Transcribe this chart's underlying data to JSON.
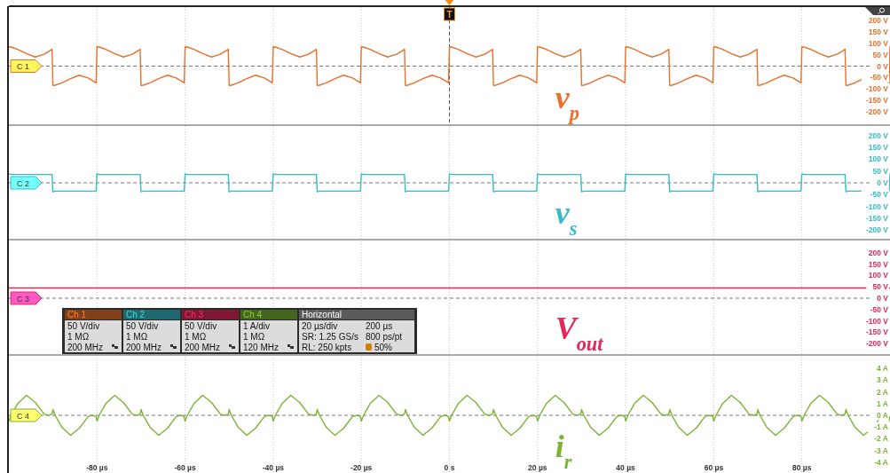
{
  "chart_data": [
    {
      "type": "line",
      "xlim": [
        -100,
        100
      ],
      "ylim": [
        -260,
        260
      ],
      "tick_labels": "y",
      "grid": "x",
      "line_style": "solid",
      "xticks": [
        -80,
        -60,
        -40,
        -20,
        0,
        20,
        40,
        60,
        80
      ],
      "yticks": [
        {
          "value": 200,
          "label": "200 V"
        },
        {
          "value": 150,
          "label": "150 V"
        },
        {
          "value": 100,
          "label": "100 V"
        },
        {
          "value": 50,
          "label": "50 V"
        },
        {
          "value": 0,
          "label": "0 V"
        },
        {
          "value": -50,
          "label": "-50 V"
        },
        {
          "value": -100,
          "label": "-100 V"
        },
        {
          "value": -150,
          "label": "-150 V"
        },
        {
          "value": -200,
          "label": "-200 V"
        }
      ],
      "ref_lines": [
        {
          "axis": "y",
          "value": 0,
          "line_style": "dashed"
        },
        {
          "axis": "x",
          "value": 0,
          "label": "T",
          "line_style": "dashed"
        }
      ],
      "annotations": [
        "C 1"
      ],
      "x": [
        -100,
        -99.5,
        -98,
        -96,
        -94,
        -92,
        -91,
        -90.2,
        -90,
        -89.5,
        -88,
        -86,
        -84,
        -82,
        -81,
        -80.2,
        -80,
        -79.5,
        -78,
        -76,
        -74,
        -72,
        -71,
        -70.2,
        -70,
        -69.5,
        -68,
        -66,
        -64,
        -62,
        -61,
        -60.2,
        -60,
        -59.5,
        -58,
        -56,
        -54,
        -52,
        -51,
        -50.2,
        -50,
        -49.5,
        -48,
        -46,
        -44,
        -42,
        -41,
        -40.2,
        -40,
        -39.5,
        -38,
        -36,
        -34,
        -32,
        -31,
        -30.2,
        -30,
        -29.5,
        -28,
        -26,
        -24,
        -22,
        -21,
        -20.2,
        -20,
        -19.5,
        -18,
        -16,
        -14,
        -12,
        -11,
        -10.2,
        -10,
        -9.5,
        -8,
        -6,
        -4,
        -2,
        -1,
        -0.2,
        0,
        0.5,
        2,
        4,
        6,
        8,
        9,
        9.8,
        10,
        10.5,
        12,
        14,
        16,
        18,
        19,
        19.8,
        20,
        20.5,
        22,
        24,
        26,
        28,
        29,
        29.8,
        30,
        30.5,
        32,
        34,
        36,
        38,
        39,
        39.8,
        40,
        40.5,
        42,
        44,
        46,
        48,
        49,
        49.8,
        50,
        50.5,
        52,
        54,
        56,
        58,
        59,
        59.8,
        60,
        60.5,
        62,
        64,
        66,
        68,
        69,
        69.8,
        70,
        70.5,
        72,
        74,
        76,
        78,
        79,
        79.8,
        80,
        80.5,
        82,
        84,
        86,
        88,
        89,
        89.8,
        90,
        90.5,
        92,
        94,
        96,
        98,
        99,
        99.8,
        100
      ],
      "series": [
        {
          "name": "v$_{p}$",
          "color": "#e8702a",
          "values": [
            85,
            84,
            74,
            55,
            40,
            52,
            64,
            74,
            -85,
            -84,
            -74,
            -55,
            -40,
            -52,
            -64,
            -74,
            85,
            84,
            74,
            55,
            40,
            52,
            64,
            74,
            -85,
            -84,
            -74,
            -55,
            -40,
            -52,
            -64,
            -74,
            85,
            84,
            74,
            55,
            40,
            52,
            64,
            74,
            -85,
            -84,
            -74,
            -55,
            -40,
            -52,
            -64,
            -74,
            85,
            84,
            74,
            55,
            40,
            52,
            64,
            74,
            -85,
            -84,
            -74,
            -55,
            -40,
            -52,
            -64,
            -74,
            85,
            84,
            74,
            55,
            40,
            52,
            64,
            74,
            -85,
            -84,
            -74,
            -55,
            -40,
            -52,
            -64,
            -74,
            85,
            84,
            74,
            55,
            40,
            52,
            64,
            74,
            -85,
            -84,
            -74,
            -55,
            -40,
            -52,
            -64,
            -74,
            85,
            84,
            74,
            55,
            40,
            52,
            64,
            74,
            -85,
            -84,
            -74,
            -55,
            -40,
            -52,
            -64,
            -74,
            85,
            84,
            74,
            55,
            40,
            52,
            64,
            74,
            -85,
            -84,
            -74,
            -55,
            -40,
            -52,
            -64,
            -74,
            85,
            84,
            74,
            55,
            40,
            52,
            64,
            74,
            -85,
            -84,
            -74,
            -55,
            -40,
            -52,
            -64,
            -74,
            85,
            84,
            74,
            55,
            40,
            52,
            64,
            74,
            -85,
            -84,
            -74,
            -55,
            -40,
            -52,
            -64,
            -74,
            85
          ]
        }
      ]
    },
    {
      "type": "line",
      "xlim": [
        -100,
        100
      ],
      "ylim": [
        -240,
        240
      ],
      "tick_labels": "y",
      "grid": "x",
      "line_style": "solid",
      "xticks": [
        -80,
        -60,
        -40,
        -20,
        0,
        20,
        40,
        60,
        80
      ],
      "yticks": [
        {
          "value": 200,
          "label": "200 V"
        },
        {
          "value": 150,
          "label": "150 V"
        },
        {
          "value": 100,
          "label": "100 V"
        },
        {
          "value": 50,
          "label": "50 V"
        },
        {
          "value": 0,
          "label": "0 V"
        },
        {
          "value": -50,
          "label": "-50 V"
        },
        {
          "value": -100,
          "label": "-100 V"
        },
        {
          "value": -150,
          "label": "-150 V"
        },
        {
          "value": -200,
          "label": "-200 V"
        }
      ],
      "ref_lines": [
        {
          "axis": "y",
          "value": 0,
          "line_style": "dashed"
        }
      ],
      "annotations": [
        "C 2"
      ],
      "x": [
        -100,
        -99.5,
        -98,
        -96,
        -94,
        -92,
        -91,
        -90.2,
        -90,
        -89.5,
        -88,
        -86,
        -84,
        -82,
        -81,
        -80.2,
        -80,
        -79.5,
        -78,
        -76,
        -74,
        -72,
        -71,
        -70.2,
        -70,
        -69.5,
        -68,
        -66,
        -64,
        -62,
        -61,
        -60.2,
        -60,
        -59.5,
        -58,
        -56,
        -54,
        -52,
        -51,
        -50.2,
        -50,
        -49.5,
        -48,
        -46,
        -44,
        -42,
        -41,
        -40.2,
        -40,
        -39.5,
        -38,
        -36,
        -34,
        -32,
        -31,
        -30.2,
        -30,
        -29.5,
        -28,
        -26,
        -24,
        -22,
        -21,
        -20.2,
        -20,
        -19.5,
        -18,
        -16,
        -14,
        -12,
        -11,
        -10.2,
        -10,
        -9.5,
        -8,
        -6,
        -4,
        -2,
        -1,
        -0.2,
        0,
        0.5,
        2,
        4,
        6,
        8,
        9,
        9.8,
        10,
        10.5,
        12,
        14,
        16,
        18,
        19,
        19.8,
        20,
        20.5,
        22,
        24,
        26,
        28,
        29,
        29.8,
        30,
        30.5,
        32,
        34,
        36,
        38,
        39,
        39.8,
        40,
        40.5,
        42,
        44,
        46,
        48,
        49,
        49.8,
        50,
        50.5,
        52,
        54,
        56,
        58,
        59,
        59.8,
        60,
        60.5,
        62,
        64,
        66,
        68,
        69,
        69.8,
        70,
        70.5,
        72,
        74,
        76,
        78,
        79,
        79.8,
        80,
        80.5,
        82,
        84,
        86,
        88,
        89,
        89.8,
        90,
        90.5,
        92,
        94,
        96,
        98,
        99,
        99.8,
        100
      ],
      "series": [
        {
          "name": "v$_{s}$",
          "color": "#36bcc4",
          "values": [
            38,
            35,
            35,
            35,
            35,
            35,
            35,
            35,
            -38,
            -35,
            -35,
            -35,
            -35,
            -35,
            -35,
            -35,
            38,
            35,
            35,
            35,
            35,
            35,
            35,
            35,
            -38,
            -35,
            -35,
            -35,
            -35,
            -35,
            -35,
            -35,
            38,
            35,
            35,
            35,
            35,
            35,
            35,
            35,
            -38,
            -35,
            -35,
            -35,
            -35,
            -35,
            -35,
            -35,
            38,
            35,
            35,
            35,
            35,
            35,
            35,
            35,
            -38,
            -35,
            -35,
            -35,
            -35,
            -35,
            -35,
            -35,
            38,
            35,
            35,
            35,
            35,
            35,
            35,
            35,
            -38,
            -35,
            -35,
            -35,
            -35,
            -35,
            -35,
            -35,
            38,
            35,
            35,
            35,
            35,
            35,
            35,
            35,
            -38,
            -35,
            -35,
            -35,
            -35,
            -35,
            -35,
            -35,
            38,
            35,
            35,
            35,
            35,
            35,
            35,
            35,
            -38,
            -35,
            -35,
            -35,
            -35,
            -35,
            -35,
            -35,
            38,
            35,
            35,
            35,
            35,
            35,
            35,
            35,
            -38,
            -35,
            -35,
            -35,
            -35,
            -35,
            -35,
            -35,
            38,
            35,
            35,
            35,
            35,
            35,
            35,
            35,
            -38,
            -35,
            -35,
            -35,
            -35,
            -35,
            -35,
            -35,
            38,
            35,
            35,
            35,
            35,
            35,
            35,
            35,
            -38,
            -35,
            -35,
            -35,
            -35,
            -35,
            -35,
            -35,
            38
          ]
        }
      ]
    },
    {
      "type": "line",
      "xlim": [
        -100,
        100
      ],
      "ylim": [
        -250,
        250
      ],
      "tick_labels": "y",
      "grid": "x",
      "line_style": "solid",
      "xticks": [
        -80,
        -60,
        -40,
        -20,
        0,
        20,
        40,
        60,
        80
      ],
      "yticks": [
        {
          "value": 200,
          "label": "200 V"
        },
        {
          "value": 150,
          "label": "150 V"
        },
        {
          "value": 100,
          "label": "100 V"
        },
        {
          "value": 50,
          "label": "50 V"
        },
        {
          "value": 0,
          "label": "0 V"
        },
        {
          "value": -50,
          "label": "-50 V"
        },
        {
          "value": -100,
          "label": "-100 V"
        },
        {
          "value": -150,
          "label": "-150 V"
        },
        {
          "value": -200,
          "label": "-200 V"
        }
      ],
      "ref_lines": [
        {
          "axis": "y",
          "value": 0,
          "line_style": "dashed"
        }
      ],
      "annotations": [
        "C 3",
        "Ch 1",
        "50 V/div",
        "1 MΩ",
        "200 MHz",
        "Ch 2",
        "50 V/div",
        "1 MΩ",
        "200 MHz",
        "Ch 3",
        "50 V/div",
        "1 MΩ",
        "200 MHz",
        "Ch 4",
        "1 A/div",
        "1 MΩ",
        "120 MHz",
        "Horizontal",
        "20 µs/div",
        "200 µs",
        "SR: 1.25 GS/s",
        "800 ps/pt",
        "RL: 250 kpts",
        "50%"
      ],
      "x": [
        -100,
        100
      ],
      "series": [
        {
          "name": "V$_{out}$",
          "color": "#e3285a",
          "values": [
            45,
            45
          ]
        }
      ]
    },
    {
      "type": "line",
      "xlim": [
        -100,
        100
      ],
      "ylim": [
        -5,
        5
      ],
      "grid": "x",
      "line_style": "solid",
      "xticks": [
        {
          "value": -80,
          "label": "-80 µs"
        },
        {
          "value": -60,
          "label": "-60 µs"
        },
        {
          "value": -40,
          "label": "-40 µs"
        },
        {
          "value": -20,
          "label": "-20 µs"
        },
        {
          "value": 0,
          "label": "0 s"
        },
        {
          "value": 20,
          "label": "20 µs"
        },
        {
          "value": 40,
          "label": "40 µs"
        },
        {
          "value": 60,
          "label": "60 µs"
        },
        {
          "value": 80,
          "label": "80 µs"
        }
      ],
      "yticks": [
        {
          "value": 4,
          "label": "4 A"
        },
        {
          "value": 3,
          "label": "3 A"
        },
        {
          "value": 2,
          "label": "2 A"
        },
        {
          "value": 1,
          "label": "1 A"
        },
        {
          "value": 0,
          "label": "0 A"
        },
        {
          "value": -1,
          "label": "-1 A"
        },
        {
          "value": -2,
          "label": "-2 A"
        },
        {
          "value": -3,
          "label": "-3 A"
        },
        {
          "value": -4,
          "label": "-4 A"
        }
      ],
      "ref_lines": [
        {
          "axis": "y",
          "value": 0,
          "line_style": "dashed"
        }
      ],
      "annotations": [
        "C 4"
      ],
      "x": [
        -100,
        -99.5,
        -98,
        -96,
        -94,
        -92,
        -91,
        -90.2,
        -90,
        -89.5,
        -88,
        -86,
        -84,
        -82,
        -81,
        -80.2,
        -80,
        -79.5,
        -78,
        -76,
        -74,
        -72,
        -71,
        -70.2,
        -70,
        -69.5,
        -68,
        -66,
        -64,
        -62,
        -61,
        -60.2,
        -60,
        -59.5,
        -58,
        -56,
        -54,
        -52,
        -51,
        -50.2,
        -50,
        -49.5,
        -48,
        -46,
        -44,
        -42,
        -41,
        -40.2,
        -40,
        -39.5,
        -38,
        -36,
        -34,
        -32,
        -31,
        -30.2,
        -30,
        -29.5,
        -28,
        -26,
        -24,
        -22,
        -21,
        -20.2,
        -20,
        -19.5,
        -18,
        -16,
        -14,
        -12,
        -11,
        -10.2,
        -10,
        -9.5,
        -8,
        -6,
        -4,
        -2,
        -1,
        -0.2,
        0,
        0.5,
        2,
        4,
        6,
        8,
        9,
        9.8,
        10,
        10.5,
        12,
        14,
        16,
        18,
        19,
        19.8,
        20,
        20.5,
        22,
        24,
        26,
        28,
        29,
        29.8,
        30,
        30.5,
        32,
        34,
        36,
        38,
        39,
        39.8,
        40,
        40.5,
        42,
        44,
        46,
        48,
        49,
        49.8,
        50,
        50.5,
        52,
        54,
        56,
        58,
        59,
        59.8,
        60,
        60.5,
        62,
        64,
        66,
        68,
        69,
        69.8,
        70,
        70.5,
        72,
        74,
        76,
        78,
        79,
        79.8,
        80,
        80.5,
        82,
        84,
        86,
        88,
        89,
        89.8,
        90,
        90.5,
        92,
        94,
        96,
        98,
        99,
        99.8,
        100
      ],
      "series": [
        {
          "name": "i$_{r}$",
          "color": "#7ab434",
          "values": [
            -0.5,
            0,
            1.0,
            1.7,
            1.1,
            0.1,
            0,
            0.1,
            0.5,
            0,
            -1.0,
            -1.7,
            -1.1,
            -0.1,
            0,
            -0.1,
            -0.5,
            0,
            1.0,
            1.7,
            1.1,
            0.1,
            0,
            0.1,
            0.5,
            0,
            -1.0,
            -1.7,
            -1.1,
            -0.1,
            0,
            -0.1,
            -0.5,
            0,
            1.0,
            1.7,
            1.1,
            0.1,
            0,
            0.1,
            0.5,
            0,
            -1.0,
            -1.7,
            -1.1,
            -0.1,
            0,
            -0.1,
            -0.5,
            0,
            1.0,
            1.7,
            1.1,
            0.1,
            0,
            0.1,
            0.5,
            0,
            -1.0,
            -1.7,
            -1.1,
            -0.1,
            0,
            -0.1,
            -0.5,
            0,
            1.0,
            1.7,
            1.1,
            0.1,
            0,
            0.1,
            0.5,
            0,
            -1.0,
            -1.7,
            -1.1,
            -0.1,
            0,
            -0.1,
            -0.5,
            0,
            1.0,
            1.7,
            1.1,
            0.1,
            0,
            0.1,
            0.5,
            0,
            -1.0,
            -1.7,
            -1.1,
            -0.1,
            0,
            -0.1,
            -0.5,
            0,
            1.0,
            1.7,
            1.1,
            0.1,
            0,
            0.1,
            0.5,
            0,
            -1.0,
            -1.7,
            -1.1,
            -0.1,
            0,
            -0.1,
            -0.5,
            0,
            1.0,
            1.7,
            1.1,
            0.1,
            0,
            0.1,
            0.5,
            0,
            -1.0,
            -1.7,
            -1.1,
            -0.1,
            0,
            -0.1,
            -0.5,
            0,
            1.0,
            1.7,
            1.1,
            0.1,
            0,
            0.1,
            0.5,
            0,
            -1.0,
            -1.7,
            -1.1,
            -0.1,
            0,
            -0.1,
            -0.5,
            0,
            1.0,
            1.7,
            1.1,
            0.1,
            0,
            0.1,
            0.5,
            0,
            -1.0,
            -1.7,
            -1.1,
            -0.1,
            0,
            -0.1,
            -0.5
          ]
        }
      ]
    }
  ]
}
